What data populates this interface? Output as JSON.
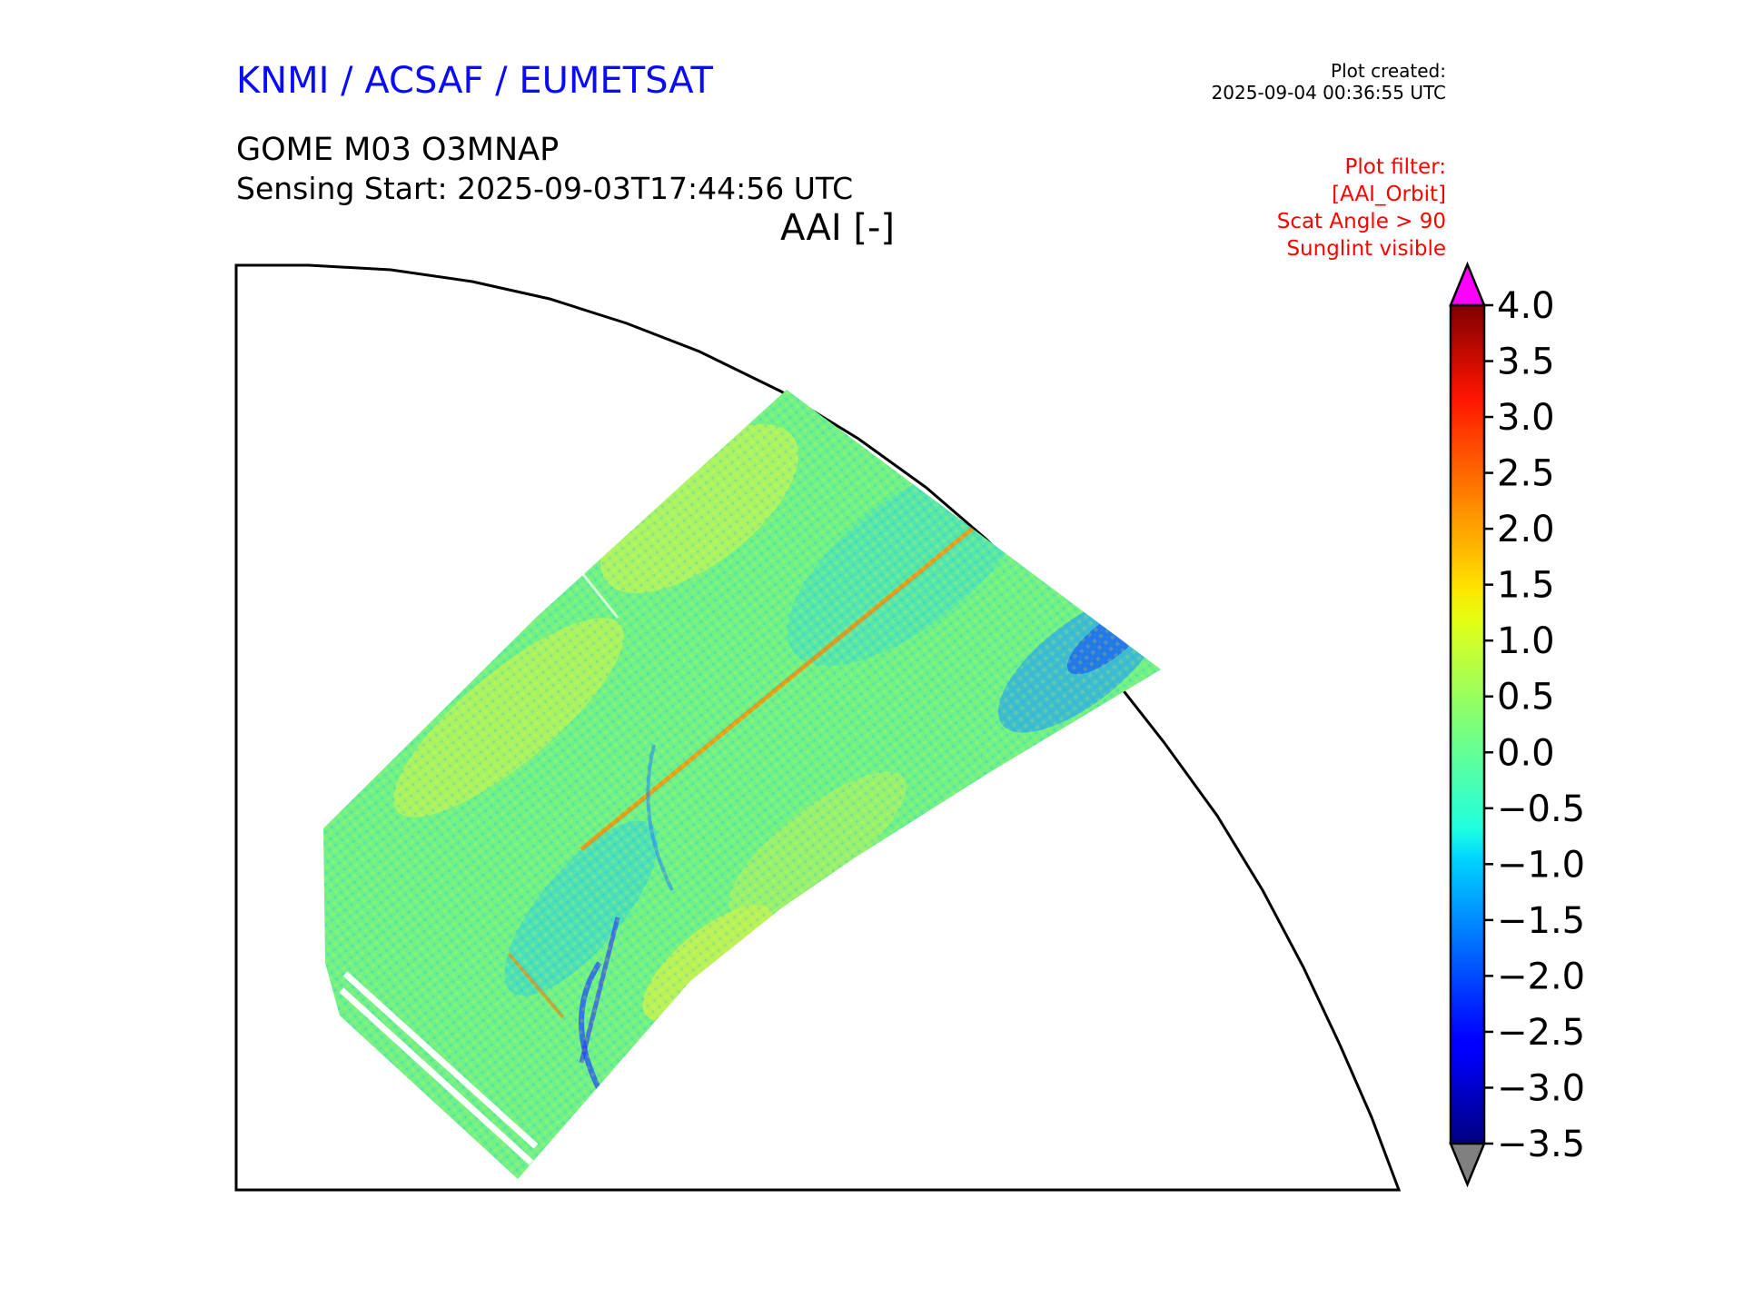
{
  "header": {
    "organizations": "KNMI / ACSAF / EUMETSAT",
    "product_title": "GOME M03 O3MNAP",
    "sensing_start": "Sensing Start: 2025-09-03T17:44:56 UTC",
    "variable_label": "AAI [-]"
  },
  "plot_created": {
    "label": "Plot created:",
    "timestamp": "2025-09-04 00:36:55 UTC"
  },
  "plot_filter": {
    "label": "Plot filter:",
    "lines": [
      "[AAI_Orbit]",
      "Scat Angle > 90",
      "Sunglint visible"
    ]
  },
  "colorbar": {
    "min": -3.5,
    "max": 4.0,
    "ticks": [
      {
        "value": 4.0,
        "label": "4.0"
      },
      {
        "value": 3.5,
        "label": "3.5"
      },
      {
        "value": 3.0,
        "label": "3.0"
      },
      {
        "value": 2.5,
        "label": "2.5"
      },
      {
        "value": 2.0,
        "label": "2.0"
      },
      {
        "value": 1.5,
        "label": "1.5"
      },
      {
        "value": 1.0,
        "label": "1.0"
      },
      {
        "value": 0.5,
        "label": "0.5"
      },
      {
        "value": 0.0,
        "label": "0.0"
      },
      {
        "value": -0.5,
        "label": "−0.5"
      },
      {
        "value": -1.0,
        "label": "−1.0"
      },
      {
        "value": -1.5,
        "label": "−1.5"
      },
      {
        "value": -2.0,
        "label": "−2.0"
      },
      {
        "value": -2.5,
        "label": "−2.5"
      },
      {
        "value": -3.0,
        "label": "−3.0"
      },
      {
        "value": -3.5,
        "label": "−3.5"
      }
    ],
    "colormap": "jet",
    "over_color": "#ff00ff",
    "under_color": "#808080"
  },
  "colors": {
    "title_blue": "#0a0aff",
    "filter_red": "#ff0000"
  }
}
